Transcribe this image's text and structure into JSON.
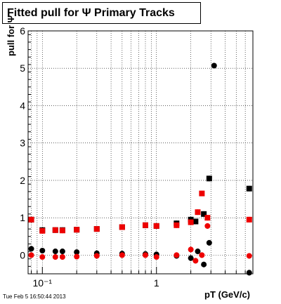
{
  "title": "Fitted pull for  Ψ   Primary Tracks",
  "timestamp": "Tue Feb  5 16:50:44 2013",
  "chart_data": {
    "type": "scatter",
    "title": "Fitted pull for  Ψ   Primary Tracks",
    "xlabel": "pT (GeV/c)",
    "ylabel": "pull for Ψ",
    "x_scale": "log",
    "xlim": [
      0.075,
      7.0
    ],
    "ylim": [
      -0.5,
      6
    ],
    "grid": true,
    "x_tick_labels": [
      "10⁻¹",
      "1"
    ],
    "y_tick_labels": [
      "0",
      "1",
      "2",
      "3",
      "4",
      "5",
      "6"
    ],
    "series": [
      {
        "marker": "square",
        "color": "#000000",
        "x": [
          0.08,
          0.1,
          0.13,
          0.15,
          0.2,
          0.3,
          0.5,
          0.8,
          1.0,
          1.5,
          2.0,
          2.2,
          2.6,
          2.9,
          6.5
        ],
        "y": [
          0.95,
          0.67,
          0.67,
          0.67,
          0.68,
          0.7,
          0.75,
          0.8,
          0.78,
          0.85,
          0.95,
          0.9,
          1.1,
          2.05,
          1.78
        ]
      },
      {
        "marker": "circle",
        "color": "#000000",
        "x": [
          0.08,
          0.1,
          0.13,
          0.15,
          0.2,
          0.3,
          0.5,
          0.8,
          1.0,
          1.5,
          2.0,
          2.3,
          2.6,
          2.9,
          3.2,
          6.5
        ],
        "y": [
          0.17,
          0.12,
          0.1,
          0.1,
          0.08,
          0.05,
          0.04,
          0.03,
          0.02,
          -0.02,
          -0.08,
          0.1,
          -0.25,
          0.33,
          5.07,
          -0.47
        ]
      },
      {
        "marker": "square",
        "color": "#ee0000",
        "x": [
          0.08,
          0.1,
          0.13,
          0.15,
          0.2,
          0.3,
          0.5,
          0.8,
          1.0,
          1.5,
          2.0,
          2.3,
          2.5,
          2.8,
          6.5
        ],
        "y": [
          0.95,
          0.65,
          0.67,
          0.66,
          0.68,
          0.7,
          0.75,
          0.8,
          0.78,
          0.8,
          0.88,
          1.15,
          1.65,
          1.0,
          0.95
        ]
      },
      {
        "marker": "circle",
        "color": "#ee0000",
        "x": [
          0.08,
          0.1,
          0.13,
          0.15,
          0.2,
          0.3,
          0.5,
          0.8,
          1.0,
          1.5,
          2.0,
          2.2,
          2.5,
          2.8,
          6.5
        ],
        "y": [
          0.0,
          -0.05,
          -0.05,
          -0.05,
          -0.04,
          -0.02,
          0.0,
          0.0,
          -0.05,
          0.0,
          0.15,
          -0.15,
          0.0,
          0.78,
          -0.02
        ]
      }
    ]
  }
}
